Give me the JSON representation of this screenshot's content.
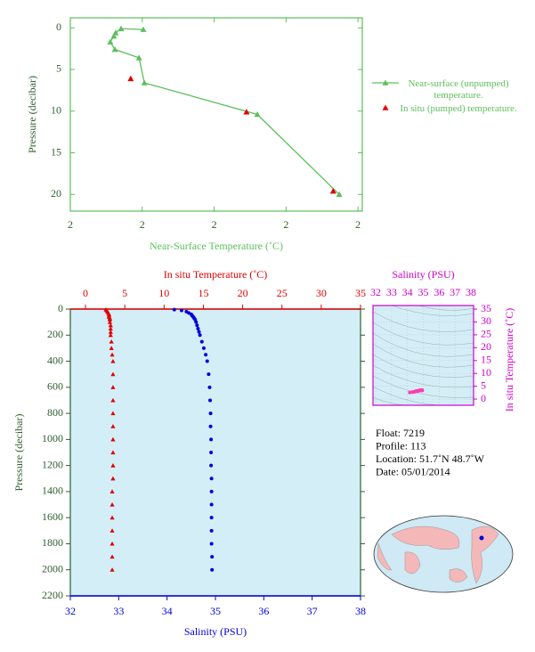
{
  "chart_data": [
    {
      "type": "line",
      "xlabel": "Near-Surface Temperature (˚C)",
      "ylabel": "Pressure (decibar)",
      "xlim": [
        1.6,
        2.412
      ],
      "xticks": [
        {
          "value": 1.6,
          "label": "2"
        },
        {
          "value": 1.8,
          "label": "2"
        },
        {
          "value": 2.0,
          "label": "2"
        },
        {
          "value": 2.2,
          "label": "2"
        },
        {
          "value": 2.4,
          "label": "2"
        }
      ],
      "ylim": [
        22,
        -1.2
      ],
      "yticks": [
        0,
        5,
        10,
        15,
        20
      ],
      "legend": "right",
      "series": [
        {
          "name": "Near-surface (unpumped) temperature.",
          "color": "#5cbf5c",
          "style": "line-marker",
          "x": [
            1.803,
            1.741,
            1.726,
            1.721,
            1.711,
            1.724,
            1.791,
            1.806,
            2.12,
            2.348
          ],
          "values": [
            0.2,
            0.1,
            0.6,
            1.0,
            1.7,
            2.6,
            3.6,
            6.6,
            10.4,
            20.0
          ]
        },
        {
          "name": "In situ (pumped) temperature.",
          "color": "#e00000",
          "style": "marker",
          "x": [
            1.768,
            2.09,
            2.331
          ],
          "values": [
            6.1,
            10.1,
            19.6
          ]
        }
      ]
    },
    {
      "type": "profile",
      "xlabel": "Salinity (PSU)",
      "x2label": "In situ Temperature (˚C)",
      "ylabel": "Pressure (decibar)",
      "xlim": [
        32,
        38
      ],
      "xticks": [
        32,
        33,
        34,
        35,
        36,
        37,
        38
      ],
      "x2lim": [
        -1.93,
        35
      ],
      "x2ticks": [
        0,
        5,
        10,
        15,
        20,
        25,
        30,
        35
      ],
      "ylim": [
        2200,
        0
      ],
      "yticks": [
        0,
        200,
        400,
        600,
        800,
        1000,
        1200,
        1400,
        1600,
        1800,
        2000,
        2200
      ],
      "y": [
        4,
        10,
        20,
        30,
        40,
        50,
        60,
        70,
        80,
        100,
        125,
        150,
        175,
        200,
        250,
        300,
        350,
        400,
        500,
        600,
        700,
        800,
        900,
        1000,
        1100,
        1200,
        1300,
        1400,
        1500,
        1600,
        1700,
        1800,
        1900,
        2000
      ],
      "series": [
        {
          "color": "#e00000",
          "axis": "x2",
          "marker": "triangle",
          "values": [
            2.6,
            2.7,
            2.8,
            2.9,
            3.0,
            3.0,
            3.0,
            3.1,
            3.1,
            3.1,
            3.2,
            3.2,
            3.2,
            3.2,
            3.3,
            3.3,
            3.4,
            3.5,
            3.5,
            3.5,
            3.5,
            3.5,
            3.5,
            3.5,
            3.5,
            3.5,
            3.5,
            3.4,
            3.4,
            3.4,
            3.4,
            3.4,
            3.4,
            3.4
          ]
        },
        {
          "color": "#0000dd",
          "axis": "x",
          "marker": "circle",
          "values": [
            34.15,
            34.3,
            34.4,
            34.45,
            34.5,
            34.52,
            34.54,
            34.56,
            34.58,
            34.6,
            34.62,
            34.64,
            34.66,
            34.68,
            34.72,
            34.76,
            34.8,
            34.83,
            34.86,
            34.88,
            34.89,
            34.9,
            34.9,
            34.91,
            34.91,
            34.91,
            34.92,
            34.92,
            34.92,
            34.92,
            34.92,
            34.92,
            34.93,
            34.93
          ]
        }
      ]
    },
    {
      "type": "ts",
      "xlabel": "Salinity (PSU)",
      "ylabel": "In situ Temperature (˚C)",
      "color": "#ff3cb4",
      "xlim": [
        31.83,
        38.17
      ],
      "xticks": [
        32,
        33,
        34,
        35,
        36,
        37,
        38
      ],
      "ylim": [
        -2.4,
        36.4
      ],
      "yticks": [
        0,
        5,
        10,
        15,
        20,
        25,
        30,
        35
      ]
    }
  ],
  "info": [
    "Float:  7219",
    "Profile:  113",
    "Location:  51.7˚N  48.7˚W",
    "Date:  05/01/2014"
  ]
}
